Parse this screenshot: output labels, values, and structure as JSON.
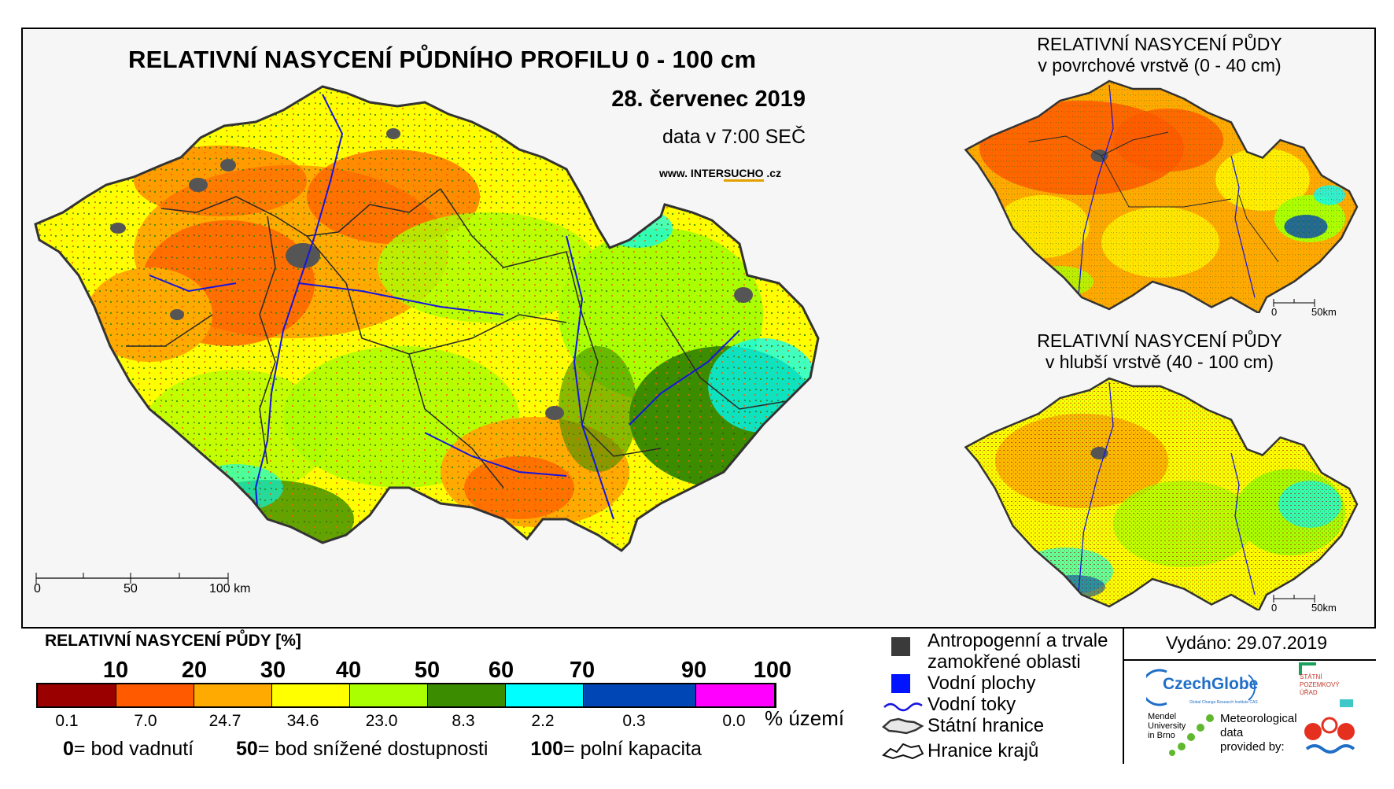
{
  "title": "RELATIVNÍ NASYCENÍ PŮDNÍHO PROFILU 0 - 100 cm",
  "date": "28. červenec 2019",
  "data_time": "data v 7:00 SEČ",
  "website": {
    "pre": "www. INTER",
    "mid": "SUCHO",
    "post": " .cz"
  },
  "surface_map": {
    "title_line1": "RELATIVNÍ NASYCENÍ PŮDY",
    "title_line2": "v povrchové vrstvě (0 - 40 cm)",
    "scale": [
      "0",
      "50km"
    ]
  },
  "deep_map": {
    "title_line1": "RELATIVNÍ NASYCENÍ PŮDY",
    "title_line2": "v hlubší vrstvě (40 - 100 cm)",
    "scale": [
      "0",
      "50km"
    ]
  },
  "main_scale": [
    "0",
    "50",
    "100 km"
  ],
  "legend": {
    "title": "RELATIVNÍ NASYCENÍ PŮDY [%]",
    "ticks": [
      "10",
      "20",
      "30",
      "40",
      "50",
      "60",
      "70",
      "90",
      "100"
    ],
    "classes": [
      {
        "color": "#9b0000",
        "percent": "0.1"
      },
      {
        "color": "#ff5a00",
        "percent": "7.0"
      },
      {
        "color": "#ffaa00",
        "percent": "24.7"
      },
      {
        "color": "#ffff00",
        "percent": "34.6"
      },
      {
        "color": "#aaff00",
        "percent": "23.0"
      },
      {
        "color": "#3c8c00",
        "percent": "8.3"
      },
      {
        "color": "#00ffff",
        "percent": "2.2"
      },
      {
        "color": "#0046b4",
        "percent": "0.3"
      },
      {
        "color": "#ff00ff",
        "percent": "0.0"
      }
    ],
    "percent_unit": "% území",
    "definitions": [
      {
        "value": "0",
        "text": "= bod vadnutí"
      },
      {
        "value": "50",
        "text": "= bod snížené dostupnosti"
      },
      {
        "value": "100",
        "text": "= polní kapacita"
      }
    ]
  },
  "symbols": [
    {
      "icon": "grey-square-icon",
      "label_line1": "Antropogenní a trvale",
      "label_line2": "zamokřené oblasti"
    },
    {
      "icon": "blue-square-icon",
      "label_line1": "Vodní plochy"
    },
    {
      "icon": "river-line-icon",
      "label_line1": "Vodní toky"
    },
    {
      "icon": "state-border-icon",
      "label_line1": "Státní hranice"
    },
    {
      "icon": "region-border-icon",
      "label_line1": "Hranice krajů"
    }
  ],
  "issued": "Vydáno: 29.07.2019",
  "credits": {
    "czechglobe": "CzechGlobe",
    "czechglobe_sub": "Global Change Research Institute CAS",
    "mendel": [
      "Mendel",
      "University",
      "in Brno"
    ],
    "meteo": [
      "Meteorological",
      "data",
      "provided by:"
    ],
    "spu": [
      "STÁTNÍ",
      "POZEMKOVÝ",
      "ÚŘAD"
    ]
  },
  "map_colors": {
    "dry": "#ff5a00",
    "medium": "#ffaa00",
    "yellow": "#ffff00",
    "green": "#aaff00",
    "dark_green": "#3c8c00",
    "cyan": "#00ffff",
    "urban": "#555555",
    "river": "#1515e0",
    "border": "#2a2a2a"
  }
}
